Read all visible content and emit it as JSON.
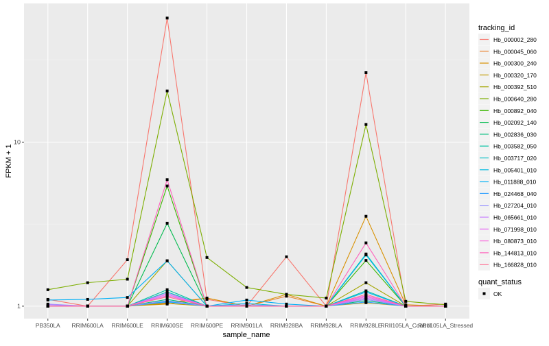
{
  "chart_data": {
    "type": "line",
    "xlabel": "sample_name",
    "ylabel": "FPKM + 1",
    "y_scale": "log10",
    "ylim": [
      0.84,
      70
    ],
    "y_ticks": [
      1,
      10
    ],
    "y_tick_labels": [
      "1",
      "10"
    ],
    "grid": true,
    "legend_position": "right",
    "categories": [
      "PB350LA",
      "RRIM600LA",
      "RRIM600LE",
      "RRIM600SE",
      "RRIM600PE",
      "RRIM901LA",
      "RRIM928BA",
      "RRIM928LA",
      "RRIM928LE",
      "RRII105LA_Control",
      "RRII105LA_Stressed"
    ],
    "legend_title": "tracking_id",
    "shape_legend_title": "quant_status",
    "shape_legend_items": [
      "OK"
    ],
    "series": [
      {
        "name": "Hb_000002_280",
        "color": "#F8766D",
        "values": [
          1.1,
          1.0,
          1.92,
          57,
          1.1,
          1.0,
          2.0,
          1.0,
          26.5,
          1.0,
          1.03
        ]
      },
      {
        "name": "Hb_000045_060",
        "color": "#EA8331",
        "values": [
          1.0,
          1.0,
          1.0,
          1.05,
          1.12,
          1.0,
          1.15,
          1.0,
          1.12,
          1.0,
          1.0
        ]
      },
      {
        "name": "Hb_000300_240",
        "color": "#D89000",
        "values": [
          1.0,
          1.0,
          1.0,
          1.03,
          1.12,
          1.0,
          1.18,
          1.0,
          3.53,
          1.02,
          1.0
        ]
      },
      {
        "name": "Hb_000320_170",
        "color": "#C09B00",
        "values": [
          1.0,
          1.0,
          1.0,
          1.04,
          1.0,
          1.0,
          1.0,
          1.0,
          1.05,
          1.0,
          1.0
        ]
      },
      {
        "name": "Hb_000392_510",
        "color": "#A3A500",
        "values": [
          1.0,
          1.0,
          1.0,
          1.89,
          1.0,
          1.0,
          1.0,
          1.0,
          1.39,
          1.0,
          1.0
        ]
      },
      {
        "name": "Hb_000640_280",
        "color": "#7CAE00",
        "values": [
          1.26,
          1.39,
          1.46,
          20.5,
          1.98,
          1.3,
          1.18,
          1.12,
          12.8,
          1.07,
          1.02
        ]
      },
      {
        "name": "Hb_000892_040",
        "color": "#39B600",
        "values": [
          1.0,
          1.0,
          1.0,
          5.4,
          1.0,
          1.0,
          1.0,
          1.0,
          1.9,
          1.0,
          1.0
        ]
      },
      {
        "name": "Hb_002092_140",
        "color": "#00BB4E",
        "values": [
          1.0,
          1.0,
          1.0,
          3.2,
          1.0,
          1.0,
          1.0,
          1.0,
          2.06,
          1.0,
          1.0
        ]
      },
      {
        "name": "Hb_002836_030",
        "color": "#00BF7D",
        "values": [
          1.0,
          1.0,
          1.0,
          1.1,
          1.0,
          1.0,
          1.0,
          1.0,
          1.08,
          1.0,
          1.0
        ]
      },
      {
        "name": "Hb_003582_050",
        "color": "#00C1A3",
        "values": [
          1.0,
          1.0,
          1.0,
          1.26,
          1.0,
          1.0,
          1.0,
          1.0,
          1.24,
          1.0,
          1.0
        ]
      },
      {
        "name": "Hb_003717_020",
        "color": "#00BFC4",
        "values": [
          1.0,
          1.0,
          1.0,
          1.22,
          1.0,
          1.0,
          1.0,
          1.0,
          2.08,
          1.0,
          1.0
        ]
      },
      {
        "name": "Hb_005401_010",
        "color": "#00BAE0",
        "values": [
          1.0,
          1.0,
          1.0,
          1.07,
          1.0,
          1.04,
          1.0,
          1.0,
          2.05,
          1.0,
          1.0
        ]
      },
      {
        "name": "Hb_011888_010",
        "color": "#00B0F6",
        "values": [
          1.09,
          1.1,
          1.13,
          1.89,
          1.0,
          1.09,
          1.03,
          1.0,
          1.22,
          1.0,
          1.0
        ]
      },
      {
        "name": "Hb_024468_040",
        "color": "#35A2FF",
        "values": [
          1.0,
          1.0,
          1.0,
          1.06,
          1.0,
          1.0,
          1.0,
          1.0,
          1.06,
          1.0,
          1.0
        ]
      },
      {
        "name": "Hb_027204_010",
        "color": "#9590FF",
        "values": [
          1.03,
          1.0,
          1.0,
          1.08,
          1.0,
          1.02,
          1.0,
          1.0,
          1.1,
          1.0,
          1.0
        ]
      },
      {
        "name": "Hb_065661_010",
        "color": "#C77CFF",
        "values": [
          1.02,
          1.0,
          1.0,
          1.18,
          1.0,
          1.0,
          1.0,
          1.0,
          1.12,
          1.0,
          1.0
        ]
      },
      {
        "name": "Hb_071998_010",
        "color": "#E76BF3",
        "values": [
          1.0,
          1.0,
          1.0,
          1.2,
          1.0,
          1.0,
          1.0,
          1.0,
          1.14,
          1.0,
          1.0
        ]
      },
      {
        "name": "Hb_080873_010",
        "color": "#FA62DB",
        "values": [
          1.0,
          1.0,
          1.0,
          1.16,
          1.0,
          1.0,
          1.0,
          1.0,
          1.16,
          1.0,
          1.0
        ]
      },
      {
        "name": "Hb_144813_010",
        "color": "#FF62BC",
        "values": [
          1.0,
          1.0,
          1.0,
          5.9,
          1.0,
          1.0,
          1.0,
          1.0,
          2.43,
          1.0,
          1.0
        ]
      },
      {
        "name": "Hb_166828_010",
        "color": "#FF6C91",
        "values": [
          1.0,
          1.0,
          1.0,
          1.14,
          1.0,
          1.0,
          1.0,
          1.0,
          1.18,
          1.0,
          1.0
        ]
      }
    ]
  }
}
